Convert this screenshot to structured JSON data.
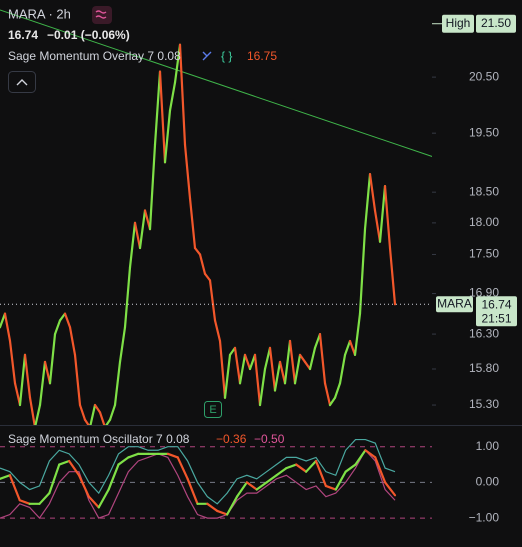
{
  "header": {
    "symbol": "MARA · 2h",
    "last": "16.74",
    "change": "−0.01 (−0.06%)",
    "overlay_name": "Sage Momentum Overlay 7 0.08",
    "overlay_value": "16.75",
    "event_marker": "E"
  },
  "chart_data": [
    {
      "type": "line",
      "log_scale": true,
      "up_color": "#7fe047",
      "down_color": "#f2572b",
      "ylim": [
        15.03,
        21.96
      ],
      "yticks": [
        {
          "value": 20.5,
          "label": "20.50"
        },
        {
          "value": 19.5,
          "label": "19.50"
        },
        {
          "value": 18.5,
          "label": "18.50"
        },
        {
          "value": 18,
          "label": "18.00"
        },
        {
          "value": 17.5,
          "label": "17.50"
        },
        {
          "value": 16.9,
          "label": "16.90"
        },
        {
          "value": 16.3,
          "label": "16.30"
        },
        {
          "value": 15.8,
          "label": "15.80"
        },
        {
          "value": 15.3,
          "label": "15.30"
        }
      ],
      "high": {
        "name": "High",
        "value": 21.5,
        "label": "21.50"
      },
      "last_price": {
        "symbol": "MARA",
        "value": 16.74,
        "label": "16.74",
        "countdown": "21:51"
      },
      "values": [
        16.4,
        16.6,
        16.2,
        15.6,
        15.3,
        16.0,
        15.4,
        15.0,
        15.3,
        15.9,
        15.6,
        16.3,
        16.5,
        16.6,
        16.4,
        16.0,
        15.3,
        15.1,
        15.0,
        15.3,
        15.2,
        15.0,
        15.1,
        15.3,
        15.9,
        16.4,
        17.3,
        18.0,
        17.6,
        18.2,
        17.9,
        19.3,
        20.6,
        19.0,
        19.9,
        20.4,
        21.1,
        19.3,
        18.4,
        17.6,
        17.5,
        17.2,
        17.1,
        16.5,
        16.2,
        15.4,
        16.0,
        16.1,
        15.6,
        16.0,
        15.8,
        16.0,
        15.3,
        15.8,
        16.1,
        15.5,
        15.9,
        15.6,
        16.2,
        15.6,
        16.0,
        15.9,
        15.8,
        16.1,
        16.3,
        15.6,
        15.3,
        15.4,
        15.6,
        16.0,
        16.2,
        16.0,
        16.6,
        17.9,
        18.8,
        18.2,
        17.7,
        18.6,
        17.6,
        16.74
      ]
    },
    {
      "type": "line",
      "title": "Sage Momentum Oscillator 7 0.08",
      "legend_values": [
        {
          "text": "−0.36",
          "color": "#f2572b"
        },
        {
          "text": "−0.50",
          "color": "#e0569a"
        }
      ],
      "ylim": [
        -1.81,
        1.58
      ],
      "yticks": [
        {
          "value": 1,
          "label": "1.00"
        },
        {
          "value": 0,
          "label": "0.00"
        },
        {
          "value": -1,
          "label": "−1.00"
        }
      ],
      "series": [
        {
          "color": "#4aa8a0",
          "values": [
            0.4,
            0.3,
            0.0,
            -0.2,
            -0.1,
            0.6,
            0.9,
            0.8,
            0.5,
            0.0,
            -0.3,
            0.2,
            0.8,
            1.0,
            1.0,
            0.9,
            0.9,
            1.0,
            1.0,
            0.6,
            0.0,
            -0.4,
            -0.6,
            -0.3,
            0.1,
            0.2,
            0.1,
            0.3,
            0.5,
            0.7,
            0.7,
            0.6,
            0.7,
            0.3,
            0.2,
            0.9,
            1.2,
            1.2,
            1.1,
            0.4,
            0.3
          ]
        },
        {
          "color": "#b0457e",
          "values": [
            -1.0,
            -0.9,
            -0.6,
            -0.7,
            -1.0,
            -0.6,
            0.0,
            0.3,
            0.3,
            -0.5,
            -1.0,
            -0.9,
            -0.3,
            0.3,
            0.6,
            0.7,
            0.8,
            0.7,
            0.2,
            -0.4,
            -0.9,
            -1.0,
            -1.0,
            -0.9,
            -0.5,
            -0.3,
            -0.3,
            -0.1,
            0.1,
            0.2,
            0.0,
            -0.2,
            -0.1,
            -0.4,
            -0.3,
            0.0,
            0.4,
            0.9,
            0.6,
            -0.2,
            -0.5
          ]
        },
        {
          "up_color": "#7fe047",
          "down_color": "#f2572b",
          "values": [
            0.1,
            0.2,
            -0.5,
            -0.6,
            -0.6,
            -0.3,
            0.5,
            0.6,
            0.2,
            -0.4,
            -0.7,
            -0.2,
            0.5,
            0.7,
            0.8,
            0.8,
            0.8,
            0.8,
            0.7,
            0.1,
            -0.6,
            -0.6,
            -0.8,
            -0.9,
            -0.4,
            0.0,
            -0.2,
            0.0,
            0.2,
            0.4,
            0.5,
            0.3,
            0.6,
            -0.1,
            -0.2,
            0.3,
            0.5,
            0.9,
            0.7,
            0.0,
            -0.36
          ]
        }
      ]
    }
  ]
}
